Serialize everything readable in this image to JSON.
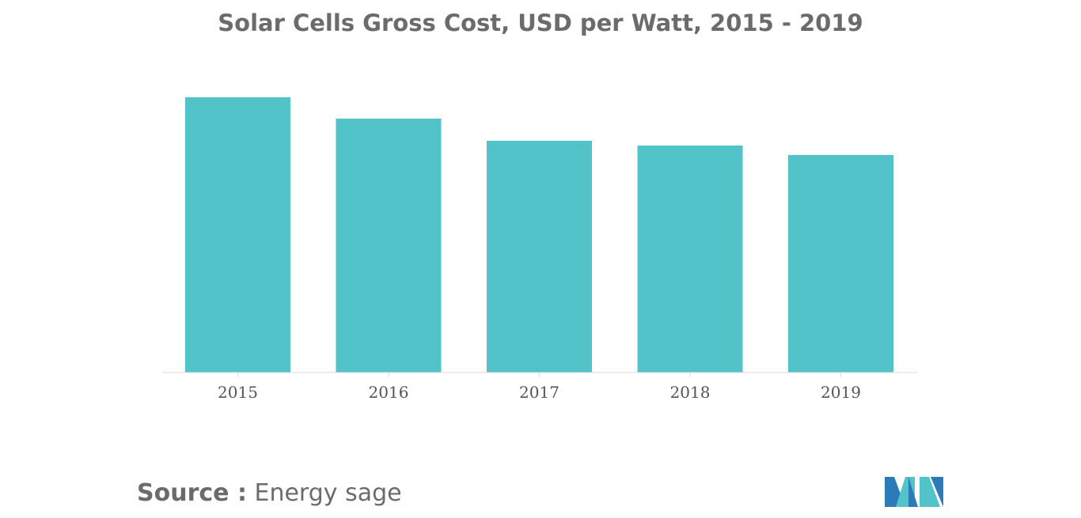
{
  "chart_data": {
    "type": "bar",
    "title": "Solar Cells Gross Cost, USD per Watt, 2015 - 2019",
    "categories": [
      "2015",
      "2016",
      "2017",
      "2018",
      "2019"
    ],
    "values": [
      3.48,
      3.21,
      2.93,
      2.87,
      2.75
    ],
    "ylim": [
      0,
      3.48
    ],
    "xlabel": "",
    "ylabel": "",
    "grid": false,
    "legend": "none",
    "bar_color": "#52c3c9"
  },
  "source": {
    "label": "Source :",
    "text": "Energy sage"
  },
  "logo": {
    "icon": "mordor-intelligence-logo",
    "colors": [
      "#2a7bb7",
      "#52c3c9"
    ]
  }
}
